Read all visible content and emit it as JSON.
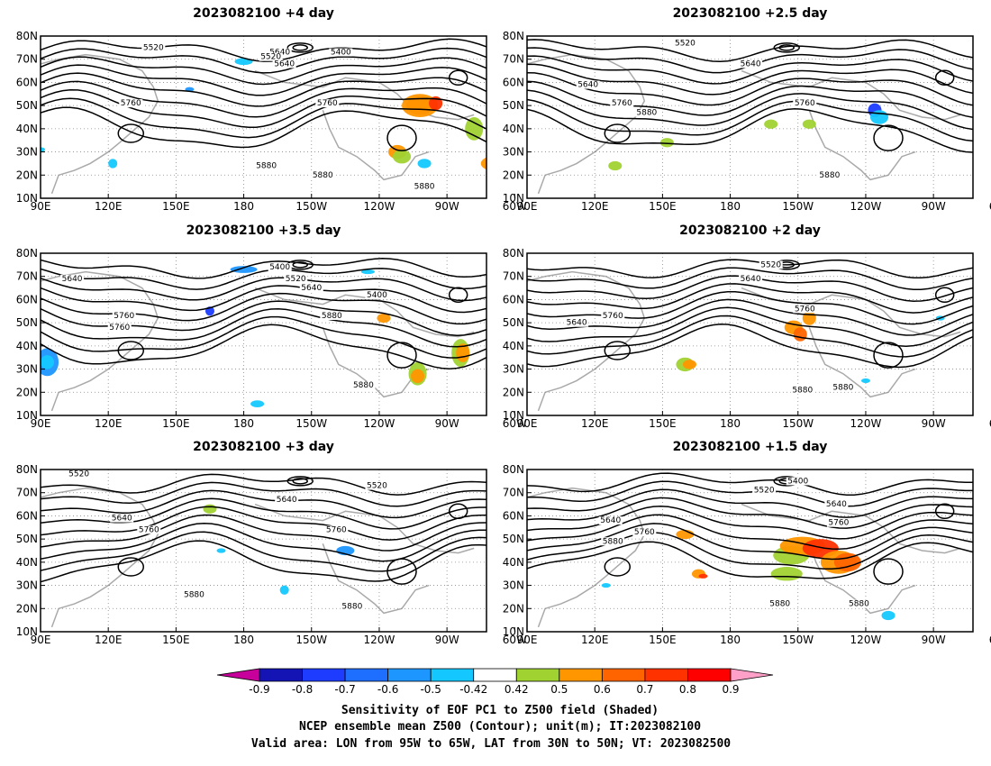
{
  "panels": [
    {
      "title": "2023082100  +4 day",
      "contour_labels": [
        "5520",
        "5640",
        "5520",
        "5400",
        "5640",
        "5760",
        "5760",
        "5880",
        "5880",
        "5880"
      ]
    },
    {
      "title": "2023082100  +2.5 day",
      "contour_labels": [
        "5520",
        "5640",
        "5640",
        "5760",
        "5880",
        "5760",
        "5880"
      ]
    },
    {
      "title": "2023082100  +3.5 day",
      "contour_labels": [
        "5400",
        "5640",
        "5520",
        "5640",
        "5400",
        "5760",
        "5880",
        "5760",
        "5880"
      ]
    },
    {
      "title": "2023082100  +2 day",
      "contour_labels": [
        "5520",
        "5640",
        "5640",
        "5760",
        "5760",
        "5880",
        "5880"
      ]
    },
    {
      "title": "2023082100  +3 day",
      "contour_labels": [
        "5520",
        "5520",
        "5640",
        "5640",
        "5760",
        "5760",
        "5880",
        "5880"
      ]
    },
    {
      "title": "2023082100  +1.5 day",
      "contour_labels": [
        "5400",
        "5520",
        "5640",
        "5640",
        "5760",
        "5760",
        "5880",
        "5880",
        "5880"
      ]
    }
  ],
  "map_axes": {
    "lat_ticks": [
      "80N",
      "70N",
      "60N",
      "50N",
      "40N",
      "30N",
      "20N",
      "10N"
    ],
    "lon_ticks": [
      "90E",
      "120E",
      "150E",
      "180",
      "150W",
      "120W",
      "90W",
      "60W"
    ]
  },
  "colorbar": {
    "tick_labels": [
      "-0.9",
      "-0.8",
      "-0.7",
      "-0.6",
      "-0.5",
      "-0.42",
      "0.42",
      "0.5",
      "0.6",
      "0.7",
      "0.8",
      "0.9"
    ],
    "colors": [
      "#c8009b",
      "#1414b4",
      "#1e3cff",
      "#1e6eff",
      "#1e96ff",
      "#14c8ff",
      "#ffffff",
      "#a0d232",
      "#ff9600",
      "#ff6400",
      "#ff3200",
      "#ff0000",
      "#ffa0c8"
    ]
  },
  "caption": [
    "Sensitivity of EOF PC1 to Z500 field (Shaded)",
    "NCEP ensemble mean Z500 (Contour); unit(m); IT:2023082100",
    "Valid area: LON from 95W to 65W, LAT from 30N to 50N; VT: 2023082500"
  ]
}
